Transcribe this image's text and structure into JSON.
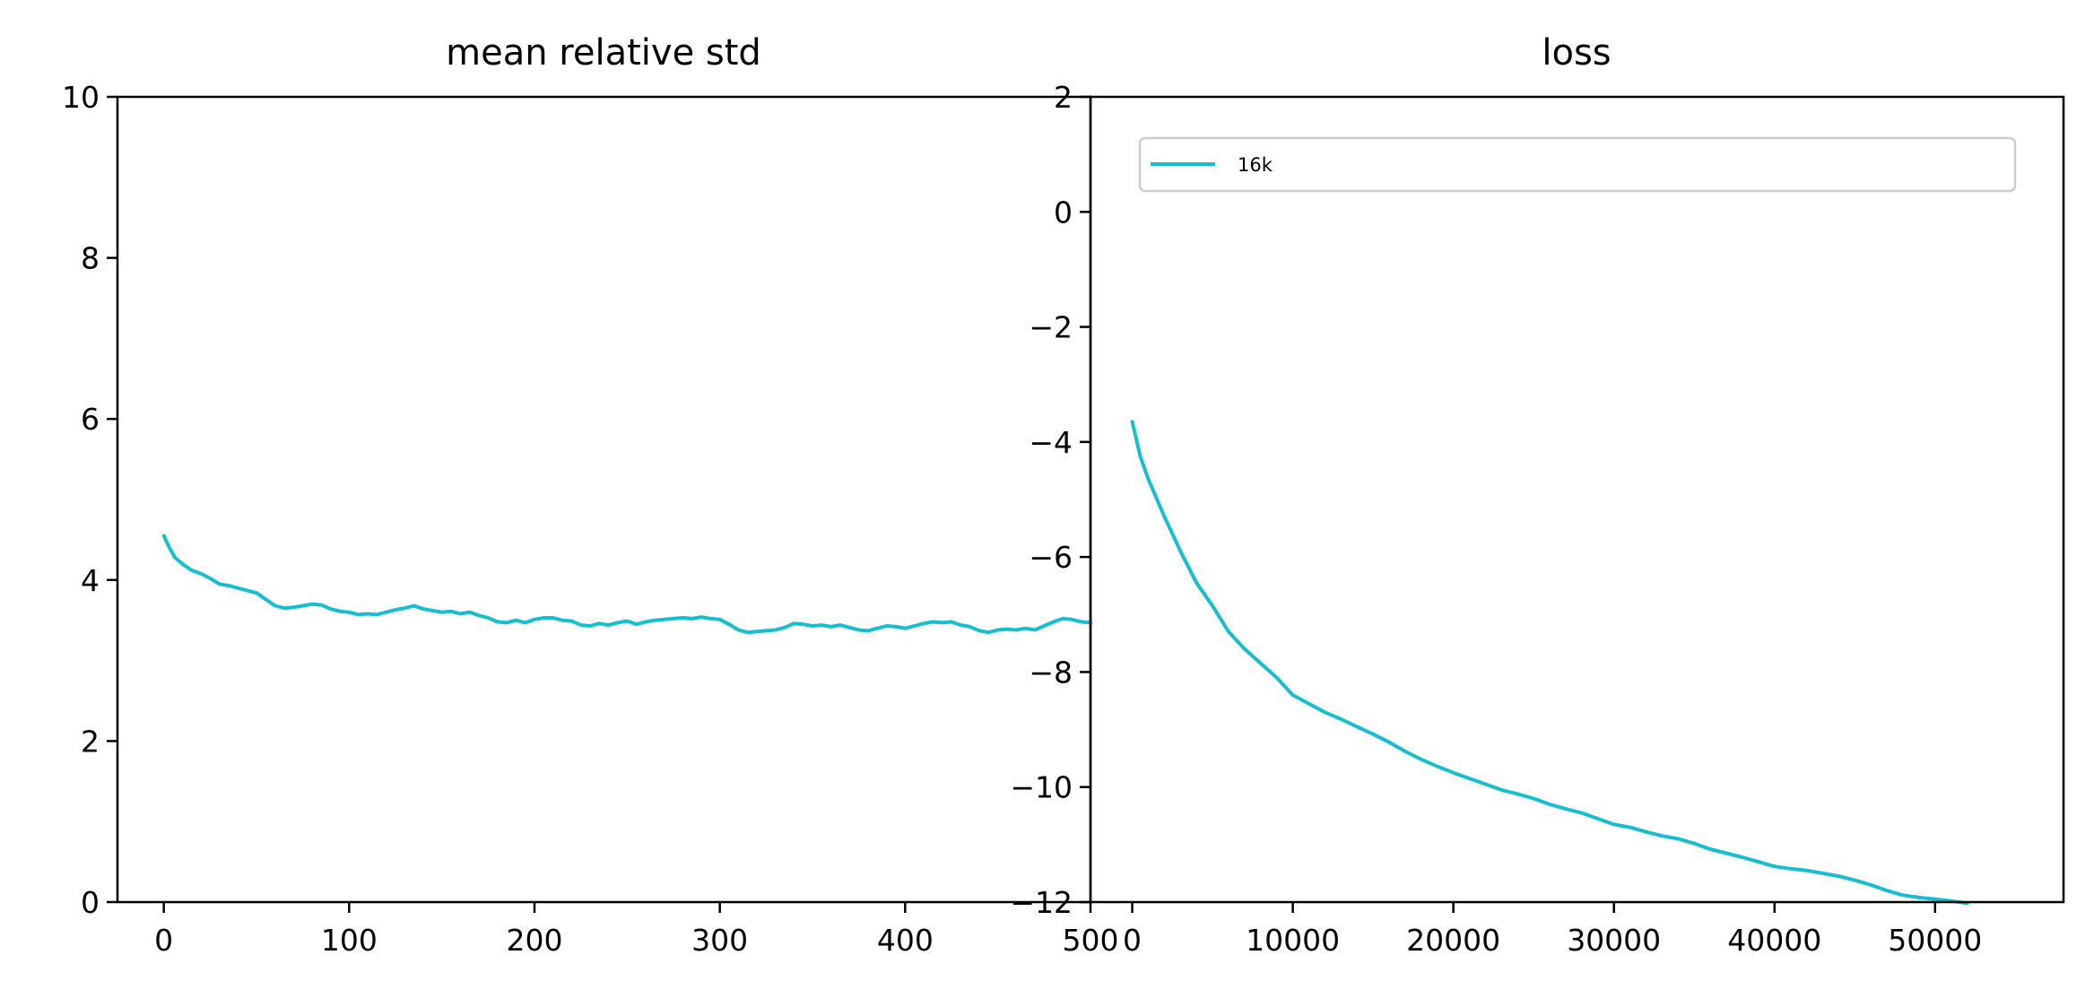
{
  "chart_data": [
    {
      "type": "line",
      "title": "mean relative std",
      "xlabel": "",
      "ylabel": "",
      "xlim": [
        -25,
        500
      ],
      "ylim": [
        0,
        10
      ],
      "x_ticks": [
        0,
        100,
        200,
        300,
        400,
        500
      ],
      "y_ticks": [
        0,
        2,
        4,
        6,
        8,
        10
      ],
      "x_tick_labels": [
        "0",
        "100",
        "200",
        "300",
        "400",
        "500"
      ],
      "y_tick_labels": [
        "0",
        "2",
        "4",
        "6",
        "8",
        "10"
      ],
      "grid": false,
      "series": [
        {
          "color": "#17becf",
          "x": [
            0,
            3,
            6,
            10,
            15,
            20,
            25,
            30,
            35,
            40,
            45,
            50,
            55,
            60,
            65,
            70,
            75,
            80,
            85,
            90,
            95,
            100,
            105,
            110,
            115,
            120,
            125,
            130,
            135,
            140,
            145,
            150,
            155,
            160,
            165,
            170,
            175,
            180,
            185,
            190,
            195,
            200,
            205,
            210,
            215,
            220,
            225,
            230,
            235,
            240,
            245,
            250,
            255,
            260,
            265,
            270,
            275,
            280,
            285,
            290,
            295,
            300,
            305,
            310,
            315,
            320,
            325,
            330,
            335,
            340,
            345,
            350,
            355,
            360,
            365,
            370,
            375,
            380,
            385,
            390,
            395,
            400,
            405,
            410,
            415,
            420,
            425,
            430,
            435,
            440,
            445,
            450,
            455,
            460,
            465,
            470,
            475,
            480,
            485,
            490,
            495,
            500
          ],
          "y": [
            4.55,
            4.4,
            4.28,
            4.2,
            4.12,
            4.08,
            4.02,
            3.95,
            3.93,
            3.9,
            3.87,
            3.84,
            3.76,
            3.68,
            3.65,
            3.66,
            3.68,
            3.7,
            3.69,
            3.64,
            3.61,
            3.6,
            3.57,
            3.58,
            3.57,
            3.6,
            3.63,
            3.65,
            3.68,
            3.64,
            3.62,
            3.6,
            3.61,
            3.58,
            3.6,
            3.56,
            3.53,
            3.48,
            3.47,
            3.5,
            3.47,
            3.51,
            3.53,
            3.53,
            3.5,
            3.49,
            3.44,
            3.43,
            3.46,
            3.44,
            3.47,
            3.49,
            3.45,
            3.48,
            3.5,
            3.51,
            3.52,
            3.53,
            3.52,
            3.54,
            3.52,
            3.51,
            3.45,
            3.38,
            3.35,
            3.36,
            3.37,
            3.38,
            3.41,
            3.46,
            3.45,
            3.43,
            3.44,
            3.42,
            3.44,
            3.41,
            3.38,
            3.37,
            3.4,
            3.43,
            3.42,
            3.4,
            3.43,
            3.46,
            3.48,
            3.47,
            3.48,
            3.44,
            3.42,
            3.37,
            3.35,
            3.38,
            3.39,
            3.38,
            3.4,
            3.38,
            3.43,
            3.48,
            3.52,
            3.51,
            3.48,
            3.47
          ]
        }
      ]
    },
    {
      "type": "line",
      "title": "loss",
      "xlabel": "",
      "ylabel": "",
      "xlim": [
        -2600,
        58000
      ],
      "ylim": [
        -12,
        2
      ],
      "x_ticks": [
        0,
        10000,
        20000,
        30000,
        40000,
        50000
      ],
      "y_ticks": [
        -12,
        -10,
        -8,
        -6,
        -4,
        -2,
        0,
        2
      ],
      "x_tick_labels": [
        "0",
        "10000",
        "20000",
        "30000",
        "40000",
        "50000"
      ],
      "y_tick_labels": [
        "−12",
        "−10",
        "−8",
        "−6",
        "−4",
        "−2",
        "0",
        "2"
      ],
      "grid": false,
      "legend": {
        "position": "top",
        "entries": [
          "16k"
        ]
      },
      "series": [
        {
          "name": "16k",
          "color": "#17becf",
          "x": [
            0,
            500,
            1000,
            2000,
            3000,
            4000,
            5000,
            6000,
            7000,
            8000,
            9000,
            10000,
            11000,
            12000,
            13000,
            14000,
            15000,
            16000,
            17000,
            18000,
            19000,
            20000,
            21000,
            22000,
            23000,
            24000,
            25000,
            26000,
            27000,
            28000,
            29000,
            30000,
            31000,
            32000,
            33000,
            34000,
            35000,
            36000,
            37000,
            38000,
            39000,
            40000,
            41000,
            42000,
            43000,
            44000,
            45000,
            46000,
            47000,
            48000,
            49000,
            50000,
            51000,
            52000
          ],
          "y": [
            -3.65,
            -4.25,
            -4.65,
            -5.3,
            -5.9,
            -6.45,
            -6.85,
            -7.3,
            -7.6,
            -7.85,
            -8.1,
            -8.4,
            -8.55,
            -8.7,
            -8.82,
            -8.95,
            -9.08,
            -9.22,
            -9.38,
            -9.52,
            -9.64,
            -9.75,
            -9.85,
            -9.95,
            -10.05,
            -10.12,
            -10.2,
            -10.3,
            -10.38,
            -10.45,
            -10.55,
            -10.65,
            -10.7,
            -10.78,
            -10.85,
            -10.9,
            -10.98,
            -11.08,
            -11.15,
            -11.22,
            -11.3,
            -11.38,
            -11.42,
            -11.45,
            -11.5,
            -11.55,
            -11.62,
            -11.7,
            -11.8,
            -11.88,
            -11.92,
            -11.95,
            -11.98,
            -12.02
          ]
        }
      ]
    }
  ]
}
